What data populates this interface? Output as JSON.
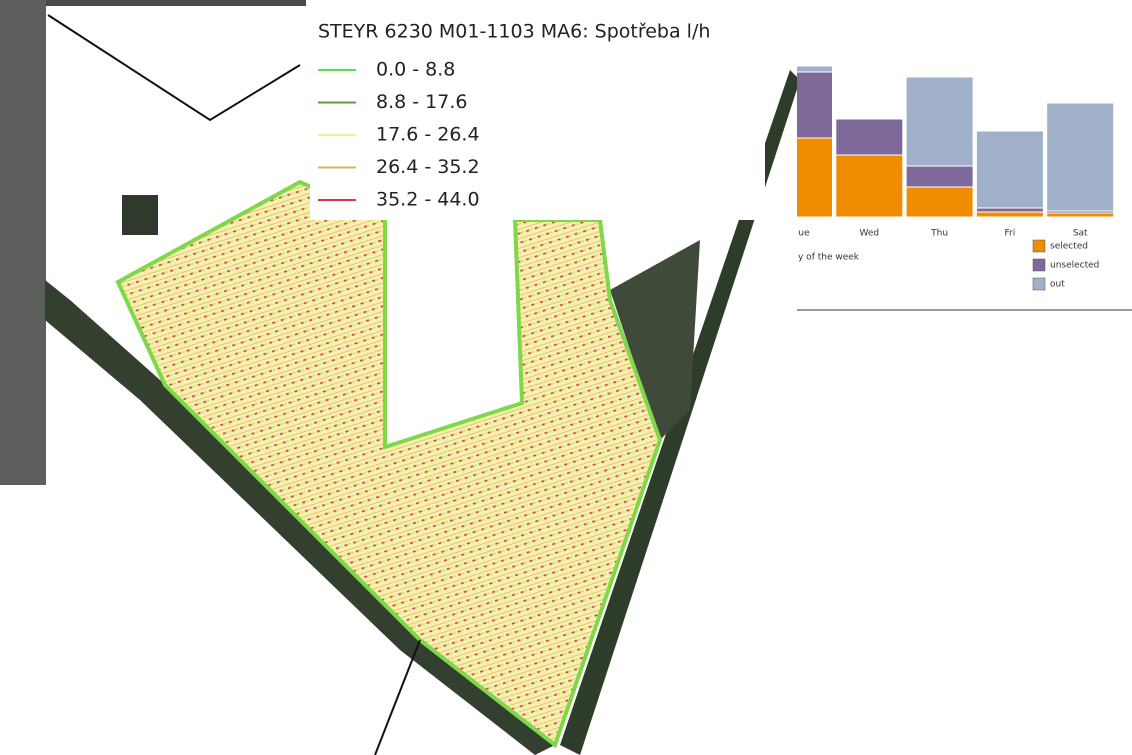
{
  "map": {
    "legend": {
      "title": "STEYR 6230 M01-1103 MA6: Spotřeba l/h",
      "items": [
        {
          "label": "0.0 - 8.8",
          "color": "#55dd55"
        },
        {
          "label": "8.8 - 17.6",
          "color": "#5a9e3a"
        },
        {
          "label": "17.6 - 26.4",
          "color": "#f3ef8c"
        },
        {
          "label": "26.4 - 35.2",
          "color": "#dcb066"
        },
        {
          "label": "35.2 - 44.0",
          "color": "#e0304a"
        }
      ]
    }
  },
  "chart_data": {
    "type": "bar",
    "stacked": true,
    "x_label": "y of the week",
    "categories": [
      "ue",
      "Wed",
      "Thu",
      "Fri",
      "Sat"
    ],
    "series": [
      {
        "name": "selected",
        "color": "#f08c00",
        "values": [
          79,
          62,
          30,
          5,
          4
        ]
      },
      {
        "name": "unselected",
        "color": "#7d6a9a",
        "values": [
          66,
          36,
          21,
          4,
          2
        ]
      },
      {
        "name": "out",
        "color": "#9fb0c8",
        "values": [
          6,
          0,
          89,
          77,
          108
        ]
      }
    ],
    "ylim": [
      0,
      160
    ]
  }
}
